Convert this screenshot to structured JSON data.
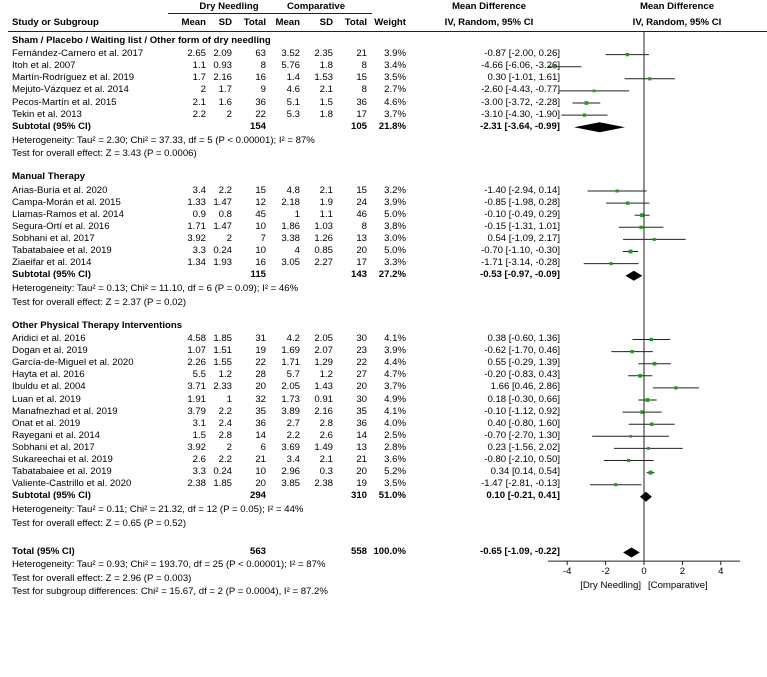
{
  "header": {
    "group1": "Dry Needling",
    "group2": "Comparative",
    "study_col": "Study or Subgroup",
    "mean": "Mean",
    "sd": "SD",
    "total": "Total",
    "weight": "Weight",
    "md_title": "Mean Difference",
    "md_sub": "IV, Random, 95% CI"
  },
  "chart_data": {
    "type": "forest",
    "xlim": [
      -5,
      5
    ],
    "ticks": [
      {
        "v": -4,
        "label": "-4"
      },
      {
        "v": -2,
        "label": "-2"
      },
      {
        "v": 0,
        "label": "0"
      },
      {
        "v": 2,
        "label": "2"
      },
      {
        "v": 4,
        "label": "4"
      }
    ],
    "favours_left": "[Dry Needling]",
    "favours_right": "[Comparative]",
    "groups": [
      {
        "title": "Sham / Placebo / Waiting list / Other form of dry needling",
        "studies": [
          {
            "name": "Fernández-Carnero et al. 2017",
            "m1": "2.65",
            "sd1": "2.09",
            "n1": "63",
            "m2": "3.52",
            "sd2": "2.35",
            "n2": "21",
            "weight": "3.9%",
            "ci": "-0.87 [-2.00, 0.26]",
            "md": -0.87,
            "lo": -2.0,
            "hi": 0.26,
            "w": 3.9
          },
          {
            "name": "Itoh et al. 2007",
            "m1": "1.1",
            "sd1": "0.93",
            "n1": "8",
            "m2": "5.76",
            "sd2": "1.8",
            "n2": "8",
            "weight": "3.4%",
            "ci": "-4.66 [-6.06, -3.26]",
            "md": -4.66,
            "lo": -6.06,
            "hi": -3.26,
            "w": 3.4
          },
          {
            "name": "Martín-Rodríguez et al. 2019",
            "m1": "1.7",
            "sd1": "2.16",
            "n1": "16",
            "m2": "1.4",
            "sd2": "1.53",
            "n2": "15",
            "weight": "3.5%",
            "ci": "0.30 [-1.01, 1.61]",
            "md": 0.3,
            "lo": -1.01,
            "hi": 1.61,
            "w": 3.5
          },
          {
            "name": "Mejuto-Vázquez et al. 2014",
            "m1": "2",
            "sd1": "1.7",
            "n1": "9",
            "m2": "4.6",
            "sd2": "2.1",
            "n2": "8",
            "weight": "2.7%",
            "ci": "-2.60 [-4.43, -0.77]",
            "md": -2.6,
            "lo": -4.43,
            "hi": -0.77,
            "w": 2.7
          },
          {
            "name": "Pecos-Martín et al. 2015",
            "m1": "2.1",
            "sd1": "1.6",
            "n1": "36",
            "m2": "5.1",
            "sd2": "1.5",
            "n2": "36",
            "weight": "4.6%",
            "ci": "-3.00 [-3.72, -2.28]",
            "md": -3.0,
            "lo": -3.72,
            "hi": -2.28,
            "w": 4.6
          },
          {
            "name": "Tekin et al. 2013",
            "m1": "2.2",
            "sd1": "2",
            "n1": "22",
            "m2": "5.3",
            "sd2": "1.8",
            "n2": "17",
            "weight": "3.7%",
            "ci": "-3.10 [-4.30, -1.90]",
            "md": -3.1,
            "lo": -4.3,
            "hi": -1.9,
            "w": 3.7
          }
        ],
        "subtotal": {
          "label": "Subtotal (95% CI)",
          "n1": "154",
          "n2": "105",
          "weight": "21.8%",
          "ci": "-2.31 [-3.64, -0.99]",
          "md": -2.31,
          "lo": -3.64,
          "hi": -0.99
        },
        "het": "Heterogeneity: Tau² = 2.30; Chi² = 37.33, df = 5 (P < 0.00001); I² = 87%",
        "test": "Test for overall effect: Z = 3.43 (P = 0.0006)"
      },
      {
        "title": "Manual Therapy",
        "studies": [
          {
            "name": "Arias-Buría et al. 2020",
            "m1": "3.4",
            "sd1": "2.2",
            "n1": "15",
            "m2": "4.8",
            "sd2": "2.1",
            "n2": "15",
            "weight": "3.2%",
            "ci": "-1.40 [-2.94, 0.14]",
            "md": -1.4,
            "lo": -2.94,
            "hi": 0.14,
            "w": 3.2
          },
          {
            "name": "Campa-Morán et al. 2015",
            "m1": "1.33",
            "sd1": "1.47",
            "n1": "12",
            "m2": "2.18",
            "sd2": "1.9",
            "n2": "24",
            "weight": "3.9%",
            "ci": "-0.85 [-1.98, 0.28]",
            "md": -0.85,
            "lo": -1.98,
            "hi": 0.28,
            "w": 3.9
          },
          {
            "name": "Llamas-Ramos et al. 2014",
            "m1": "0.9",
            "sd1": "0.8",
            "n1": "45",
            "m2": "1",
            "sd2": "1.1",
            "n2": "46",
            "weight": "5.0%",
            "ci": "-0.10 [-0.49, 0.29]",
            "md": -0.1,
            "lo": -0.49,
            "hi": 0.29,
            "w": 5.0
          },
          {
            "name": "Segura-Ortí et al. 2016",
            "m1": "1.71",
            "sd1": "1.47",
            "n1": "10",
            "m2": "1.86",
            "sd2": "1.03",
            "n2": "8",
            "weight": "3.8%",
            "ci": "-0.15 [-1.31, 1.01]",
            "md": -0.15,
            "lo": -1.31,
            "hi": 1.01,
            "w": 3.8
          },
          {
            "name": "Sobhani et al. 2017",
            "m1": "3.92",
            "sd1": "2",
            "n1": "7",
            "m2": "3.38",
            "sd2": "1.26",
            "n2": "13",
            "weight": "3.0%",
            "ci": "0.54 [-1.09, 2.17]",
            "md": 0.54,
            "lo": -1.09,
            "hi": 2.17,
            "w": 3.0
          },
          {
            "name": "Tabatabaiee et al. 2019",
            "m1": "3.3",
            "sd1": "0.24",
            "n1": "10",
            "m2": "4",
            "sd2": "0.85",
            "n2": "20",
            "weight": "5.0%",
            "ci": "-0.70 [-1.10, -0.30]",
            "md": -0.7,
            "lo": -1.1,
            "hi": -0.3,
            "w": 5.0
          },
          {
            "name": "Ziaeifar et al. 2014",
            "m1": "1.34",
            "sd1": "1.93",
            "n1": "16",
            "m2": "3.05",
            "sd2": "2.27",
            "n2": "17",
            "weight": "3.3%",
            "ci": "-1.71 [-3.14, -0.28]",
            "md": -1.71,
            "lo": -3.14,
            "hi": -0.28,
            "w": 3.3
          }
        ],
        "subtotal": {
          "label": "Subtotal (95% CI)",
          "n1": "115",
          "n2": "143",
          "weight": "27.2%",
          "ci": "-0.53 [-0.97, -0.09]",
          "md": -0.53,
          "lo": -0.97,
          "hi": -0.09
        },
        "het": "Heterogeneity: Tau² = 0.13; Chi² = 11.10, df = 6 (P = 0.09); I² = 46%",
        "test": "Test for overall effect: Z = 2.37 (P = 0.02)"
      },
      {
        "title": "Other Physical Therapy Interventions",
        "studies": [
          {
            "name": "Aridici et al. 2016",
            "m1": "4.58",
            "sd1": "1.85",
            "n1": "31",
            "m2": "4.2",
            "sd2": "2.05",
            "n2": "30",
            "weight": "4.1%",
            "ci": "0.38 [-0.60, 1.36]",
            "md": 0.38,
            "lo": -0.6,
            "hi": 1.36,
            "w": 4.1
          },
          {
            "name": "Dogan et al. 2019",
            "m1": "1.07",
            "sd1": "1.51",
            "n1": "19",
            "m2": "1.69",
            "sd2": "2.07",
            "n2": "23",
            "weight": "3.9%",
            "ci": "-0.62 [-1.70, 0.46]",
            "md": -0.62,
            "lo": -1.7,
            "hi": 0.46,
            "w": 3.9
          },
          {
            "name": "García-de-Miguel et al. 2020",
            "m1": "2.26",
            "sd1": "1.55",
            "n1": "22",
            "m2": "1.71",
            "sd2": "1.29",
            "n2": "22",
            "weight": "4.4%",
            "ci": "0.55 [-0.29, 1.39]",
            "md": 0.55,
            "lo": -0.29,
            "hi": 1.39,
            "w": 4.4
          },
          {
            "name": "Hayta et al. 2016",
            "m1": "5.5",
            "sd1": "1.2",
            "n1": "28",
            "m2": "5.7",
            "sd2": "1.2",
            "n2": "27",
            "weight": "4.7%",
            "ci": "-0.20 [-0.83, 0.43]",
            "md": -0.2,
            "lo": -0.83,
            "hi": 0.43,
            "w": 4.7
          },
          {
            "name": "Ibuldu et al. 2004",
            "m1": "3.71",
            "sd1": "2.33",
            "n1": "20",
            "m2": "2.05",
            "sd2": "1.43",
            "n2": "20",
            "weight": "3.7%",
            "ci": "1.66 [0.46, 2.86]",
            "md": 1.66,
            "lo": 0.46,
            "hi": 2.86,
            "w": 3.7
          },
          {
            "name": "Luan et al. 2019",
            "m1": "1.91",
            "sd1": "1",
            "n1": "32",
            "m2": "1.73",
            "sd2": "0.91",
            "n2": "30",
            "weight": "4.9%",
            "ci": "0.18 [-0.30, 0.66]",
            "md": 0.18,
            "lo": -0.3,
            "hi": 0.66,
            "w": 4.9
          },
          {
            "name": "Manafnezhad et al. 2019",
            "m1": "3.79",
            "sd1": "2.2",
            "n1": "35",
            "m2": "3.89",
            "sd2": "2.16",
            "n2": "35",
            "weight": "4.1%",
            "ci": "-0.10 [-1.12, 0.92]",
            "md": -0.1,
            "lo": -1.12,
            "hi": 0.92,
            "w": 4.1
          },
          {
            "name": "Onat et al. 2019",
            "m1": "3.1",
            "sd1": "2.4",
            "n1": "36",
            "m2": "2.7",
            "sd2": "2.8",
            "n2": "36",
            "weight": "4.0%",
            "ci": "0.40 [-0.80, 1.60]",
            "md": 0.4,
            "lo": -0.8,
            "hi": 1.6,
            "w": 4.0
          },
          {
            "name": "Rayegani et al. 2014",
            "m1": "1.5",
            "sd1": "2.8",
            "n1": "14",
            "m2": "2.2",
            "sd2": "2.6",
            "n2": "14",
            "weight": "2.5%",
            "ci": "-0.70 [-2.70, 1.30]",
            "md": -0.7,
            "lo": -2.7,
            "hi": 1.3,
            "w": 2.5
          },
          {
            "name": "Sobhani et al. 2017",
            "m1": "3.92",
            "sd1": "2",
            "n1": "6",
            "m2": "3.69",
            "sd2": "1.49",
            "n2": "13",
            "weight": "2.8%",
            "ci": "0.23 [-1.56, 2.02]",
            "md": 0.23,
            "lo": -1.56,
            "hi": 2.02,
            "w": 2.8
          },
          {
            "name": "Sukareechai et al. 2019",
            "m1": "2.6",
            "sd1": "2.2",
            "n1": "21",
            "m2": "3.4",
            "sd2": "2.1",
            "n2": "21",
            "weight": "3.6%",
            "ci": "-0.80 [-2.10, 0.50]",
            "md": -0.8,
            "lo": -2.1,
            "hi": 0.5,
            "w": 3.6
          },
          {
            "name": "Tabatabaiee et al. 2019",
            "m1": "3.3",
            "sd1": "0.24",
            "n1": "10",
            "m2": "2.96",
            "sd2": "0.3",
            "n2": "20",
            "weight": "5.2%",
            "ci": "0.34 [0.14, 0.54]",
            "md": 0.34,
            "lo": 0.14,
            "hi": 0.54,
            "w": 5.2
          },
          {
            "name": "Valiente-Castrillo et al. 2020",
            "m1": "2.38",
            "sd1": "1.85",
            "n1": "20",
            "m2": "3.85",
            "sd2": "2.38",
            "n2": "19",
            "weight": "3.5%",
            "ci": "-1.47 [-2.81, -0.13]",
            "md": -1.47,
            "lo": -2.81,
            "hi": -0.13,
            "w": 3.5
          }
        ],
        "subtotal": {
          "label": "Subtotal (95% CI)",
          "n1": "294",
          "n2": "310",
          "weight": "51.0%",
          "ci": "0.10 [-0.21, 0.41]",
          "md": 0.1,
          "lo": -0.21,
          "hi": 0.41
        },
        "het": "Heterogeneity: Tau² = 0.11; Chi² = 21.32, df = 12 (P = 0.05); I² = 44%",
        "test": "Test for overall effect: Z = 0.65 (P = 0.52)"
      }
    ],
    "total": {
      "label": "Total (95% CI)",
      "n1": "563",
      "n2": "558",
      "weight": "100.0%",
      "ci": "-0.65 [-1.09, -0.22]",
      "md": -0.65,
      "lo": -1.09,
      "hi": -0.22
    },
    "total_het": "Heterogeneity: Tau² = 0.93; Chi² = 193.70, df = 25 (P < 0.00001); I² = 87%",
    "total_test": "Test for overall effect: Z = 2.96 (P = 0.003)",
    "subgroup_test": "Test for subgroup differences: Chi² = 15.67, df = 2 (P = 0.0004), I² = 87.2%",
    "colors": {
      "study_marker": "#1a9f1a",
      "diamond": "#000000",
      "line": "#222222"
    }
  }
}
